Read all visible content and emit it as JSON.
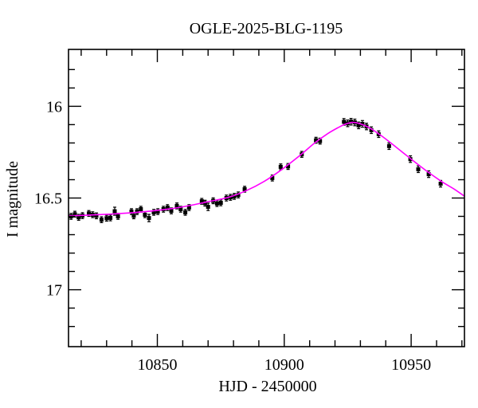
{
  "chart_data": {
    "type": "scatter",
    "title": "OGLE-2025-BLG-1195",
    "xlabel": "HJD - 2450000",
    "ylabel": "I magnitude",
    "xlim": [
      10815,
      10971
    ],
    "ylim_mag": [
      15.69,
      17.31
    ],
    "y_axis_inverted": true,
    "grid": false,
    "legend": "none",
    "x_ticks": {
      "major": [
        {
          "value": 10850,
          "label": "10850"
        },
        {
          "value": 10900,
          "label": "10900"
        },
        {
          "value": 10950,
          "label": "10950"
        }
      ],
      "minor_start": 10820,
      "minor_end": 10970,
      "minor_step": 10
    },
    "y_ticks": {
      "major": [
        {
          "value": 16.0,
          "label": "16"
        },
        {
          "value": 16.5,
          "label": "16.5"
        },
        {
          "value": 17.0,
          "label": "17"
        }
      ],
      "minor_start": 15.8,
      "minor_end": 17.2,
      "minor_step": 0.1
    },
    "peak_readout": {
      "t0_hjd": 10926.5,
      "peak_mag": 16.09,
      "baseline_mag": 16.6
    },
    "series": [
      {
        "name": "I-band photometry (mag, with error bars)",
        "type": "scatter_errorbar",
        "color": "#000000",
        "points": [
          [
            10816.0,
            16.6,
            0.016
          ],
          [
            10817.5,
            16.588,
            0.016
          ],
          [
            10819.0,
            16.605,
            0.016
          ],
          [
            10820.5,
            16.596,
            0.016
          ],
          [
            10823.0,
            16.584,
            0.016
          ],
          [
            10824.5,
            16.591,
            0.016
          ],
          [
            10826.0,
            16.597,
            0.016
          ],
          [
            10828.0,
            16.618,
            0.016
          ],
          [
            10830.0,
            16.61,
            0.016
          ],
          [
            10831.5,
            16.608,
            0.016
          ],
          [
            10833.2,
            16.572,
            0.022
          ],
          [
            10834.5,
            16.6,
            0.016
          ],
          [
            10839.8,
            16.574,
            0.016
          ],
          [
            10840.7,
            16.597,
            0.016
          ],
          [
            10842.0,
            16.574,
            0.016
          ],
          [
            10843.5,
            16.561,
            0.016
          ],
          [
            10845.1,
            16.591,
            0.016
          ],
          [
            10846.7,
            16.609,
            0.02
          ],
          [
            10848.6,
            16.578,
            0.016
          ],
          [
            10850.2,
            16.574,
            0.016
          ],
          [
            10852.4,
            16.561,
            0.016
          ],
          [
            10854.0,
            16.552,
            0.016
          ],
          [
            10855.5,
            16.57,
            0.016
          ],
          [
            10857.7,
            16.543,
            0.016
          ],
          [
            10859.2,
            16.561,
            0.016
          ],
          [
            10861.0,
            16.578,
            0.016
          ],
          [
            10862.5,
            16.552,
            0.016
          ],
          [
            10867.5,
            16.518,
            0.016
          ],
          [
            10868.8,
            16.528,
            0.016
          ],
          [
            10870.0,
            16.548,
            0.02
          ],
          [
            10872.0,
            16.515,
            0.016
          ],
          [
            10873.5,
            16.53,
            0.016
          ],
          [
            10875.0,
            16.526,
            0.016
          ],
          [
            10877.2,
            16.5,
            0.016
          ],
          [
            10878.8,
            16.496,
            0.016
          ],
          [
            10880.3,
            16.491,
            0.016
          ],
          [
            10881.9,
            16.483,
            0.016
          ],
          [
            10884.4,
            16.452,
            0.016
          ],
          [
            10895.3,
            16.391,
            0.016
          ],
          [
            10898.6,
            16.33,
            0.016
          ],
          [
            10901.5,
            16.328,
            0.016
          ],
          [
            10906.9,
            16.262,
            0.016
          ],
          [
            10912.5,
            16.185,
            0.016
          ],
          [
            10914.1,
            16.19,
            0.016
          ],
          [
            10923.5,
            16.085,
            0.018
          ],
          [
            10925.0,
            16.093,
            0.018
          ],
          [
            10926.3,
            16.084,
            0.018
          ],
          [
            10927.8,
            16.088,
            0.018
          ],
          [
            10929.3,
            16.104,
            0.018
          ],
          [
            10930.8,
            16.096,
            0.018
          ],
          [
            10932.4,
            16.11,
            0.018
          ],
          [
            10934.3,
            16.13,
            0.018
          ],
          [
            10937.2,
            16.152,
            0.018
          ],
          [
            10941.3,
            16.217,
            0.018
          ],
          [
            10949.7,
            16.288,
            0.018
          ],
          [
            10952.8,
            16.343,
            0.018
          ],
          [
            10956.9,
            16.37,
            0.018
          ],
          [
            10961.6,
            16.422,
            0.018
          ]
        ]
      },
      {
        "name": "microlensing model light curve",
        "type": "line",
        "color": "#ff00ff",
        "points": [
          [
            10815,
            16.597
          ],
          [
            10823,
            16.593
          ],
          [
            10831,
            16.588
          ],
          [
            10839,
            16.581
          ],
          [
            10847,
            16.572
          ],
          [
            10855,
            16.559
          ],
          [
            10862,
            16.543
          ],
          [
            10869,
            16.523
          ],
          [
            10878,
            16.496
          ],
          [
            10885,
            16.46
          ],
          [
            10892,
            16.41
          ],
          [
            10899,
            16.345
          ],
          [
            10906,
            16.27
          ],
          [
            10912,
            16.2
          ],
          [
            10917,
            16.15
          ],
          [
            10921,
            16.118
          ],
          [
            10924,
            16.098
          ],
          [
            10927,
            16.088
          ],
          [
            10930,
            16.096
          ],
          [
            10934,
            16.121
          ],
          [
            10939,
            16.168
          ],
          [
            10944,
            16.222
          ],
          [
            10950,
            16.288
          ],
          [
            10956,
            16.352
          ],
          [
            10962,
            16.41
          ],
          [
            10967,
            16.452
          ],
          [
            10971,
            16.49
          ]
        ]
      }
    ]
  },
  "colors": {
    "background": "#ffffff",
    "frame": "#000000",
    "data_points": "#000000",
    "model_curve": "#ff00ff"
  }
}
